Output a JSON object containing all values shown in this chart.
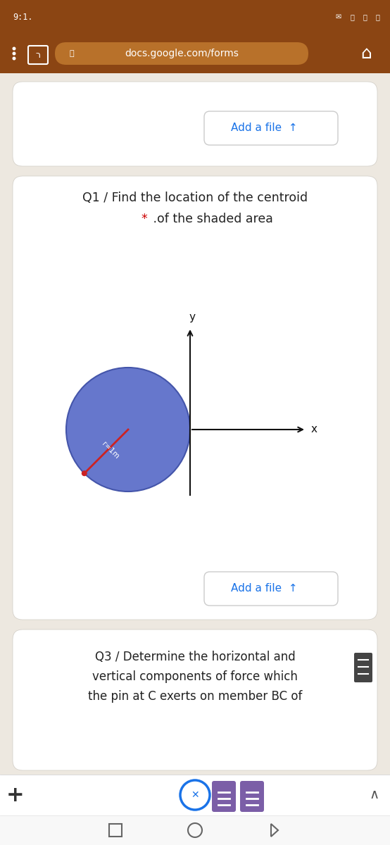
{
  "bg_color": "#a0521a",
  "status_bar_bg": "#8b4513",
  "nav_bar_bg": "#8b4513",
  "page_bg": "#ede8e0",
  "card_bg": "#ffffff",
  "add_file_text": "Add a file",
  "add_file_color": "#1a73e8",
  "q1_title": "Q1 / Find the location of the centroid",
  "q1_subtitle_star": "*",
  "q1_subtitle_rest": " .of the shaded area",
  "q1_star_color": "#cc0000",
  "q3_line1": "Q3 / Determine the horizontal and",
  "q3_line2": "vertical components of force which",
  "q3_line3": "the pin at C exerts on member BC of",
  "circle_color": "#6677cc",
  "circle_edge_color": "#4455aa",
  "radius_line_color": "#cc2222",
  "radius_dot_color": "#cc2222",
  "axis_color": "#111111",
  "r_label": "r=1m",
  "x_label": "x",
  "y_label": "y",
  "url_text": "docs.google.com/forms",
  "status_text": "9:1.",
  "blue_icon_color": "#1a73e8",
  "purple_icon_color": "#7b5ea7"
}
